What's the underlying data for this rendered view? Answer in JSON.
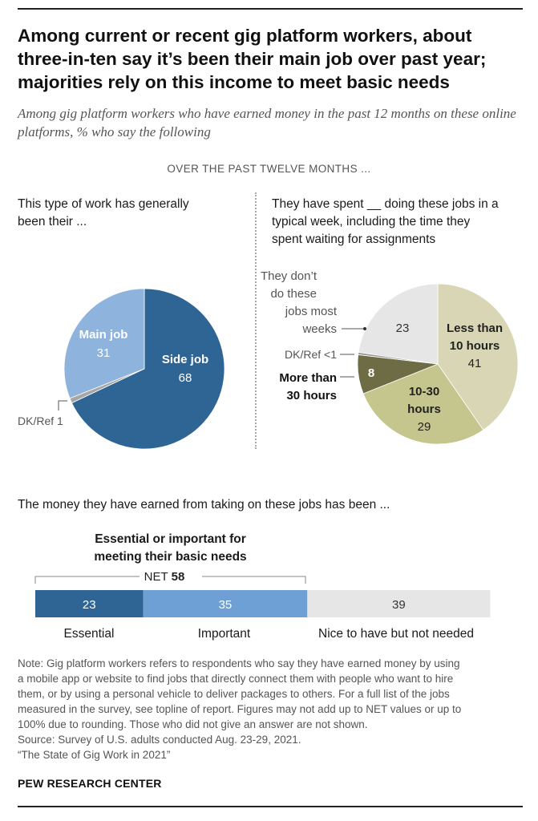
{
  "title": "Among current or recent gig platform workers, about three-in-ten say it’s been their main job over past year; majorities rely on this income to meet basic needs",
  "subtitle": "Among gig platform workers who have earned money in the past 12 months on these online platforms, % who say the following",
  "section_header": "OVER THE PAST TWELVE MONTHS ...",
  "left_panel": {
    "label_line1": "This type of work has generally",
    "label_line2": "been their ..."
  },
  "right_panel": {
    "label_line1": "They have spent __ doing these jobs in a",
    "label_line2": "typical week, including the time they",
    "label_line3": "spent waiting for assignments"
  },
  "pie_left_labels": {
    "main_job": "Main job",
    "main_job_value": "31",
    "side_job": "Side job",
    "side_job_value": "68",
    "dkref": "DK/Ref 1"
  },
  "pie_right_labels": {
    "dont_line1": "They don’t",
    "dont_line2": "do these",
    "dont_line3": "jobs most",
    "dont_line4": "weeks",
    "dont_value": "23",
    "less_line1": "Less than",
    "less_line2": "10 hours",
    "less_value": "41",
    "mid_line1": "10-30",
    "mid_line2": "hours",
    "mid_value": "29",
    "more_line1": "More than",
    "more_line2": "30 hours",
    "more_value": "8",
    "dkref": "DK/Ref <1"
  },
  "money": {
    "label": "The money they have earned from taking on these jobs has been ...",
    "net_title_line1": "Essential or important for",
    "net_title_line2": "meeting their basic needs",
    "net_label": "NET",
    "net_value": "58",
    "categories": [
      "Essential",
      "Important",
      "Nice to have but not needed"
    ]
  },
  "note": {
    "line1": "Note: Gig platform workers refers to respondents who say they have earned money by using",
    "line2": "a mobile app or website to find jobs that directly connect them with people who want to hire",
    "line3": "them, or by using a personal vehicle to deliver packages to others. For a full list of the jobs",
    "line4": "measured in the survey, see topline of report. Figures may not add up to NET values or up to",
    "line5": "100% due to rounding. Those who did not give an answer are not shown.",
    "line6": "Source: Survey of U.S. adults conducted Aug. 23-29, 2021.",
    "line7": "“The State of Gig Work in 2021”"
  },
  "brand": "PEW RESEARCH CENTER",
  "chart_data": [
    {
      "type": "pie",
      "categories": [
        "Side job",
        "DK/Ref",
        "Main job"
      ],
      "values": [
        68,
        1,
        31
      ],
      "colors": [
        "#2f6595",
        "#a6a6a6",
        "#8eb3dc"
      ]
    },
    {
      "type": "pie",
      "categories": [
        "Less than 10 hours",
        "10-30 hours",
        "More than 30 hours",
        "DK/Ref",
        "They don’t do these jobs most weeks"
      ],
      "values": [
        41,
        29,
        8,
        0.5,
        23
      ],
      "colors": [
        "#d8d6b4",
        "#c5c58e",
        "#6e6c45",
        "#9a9a9a",
        "#e6e6e6"
      ]
    },
    {
      "type": "bar",
      "categories": [
        "Essential",
        "Important",
        "Nice to have but not needed"
      ],
      "values": [
        23,
        35,
        39
      ],
      "net": 58,
      "colors": [
        "#2f6595",
        "#6e9fd5",
        "#e6e6e6"
      ]
    }
  ]
}
